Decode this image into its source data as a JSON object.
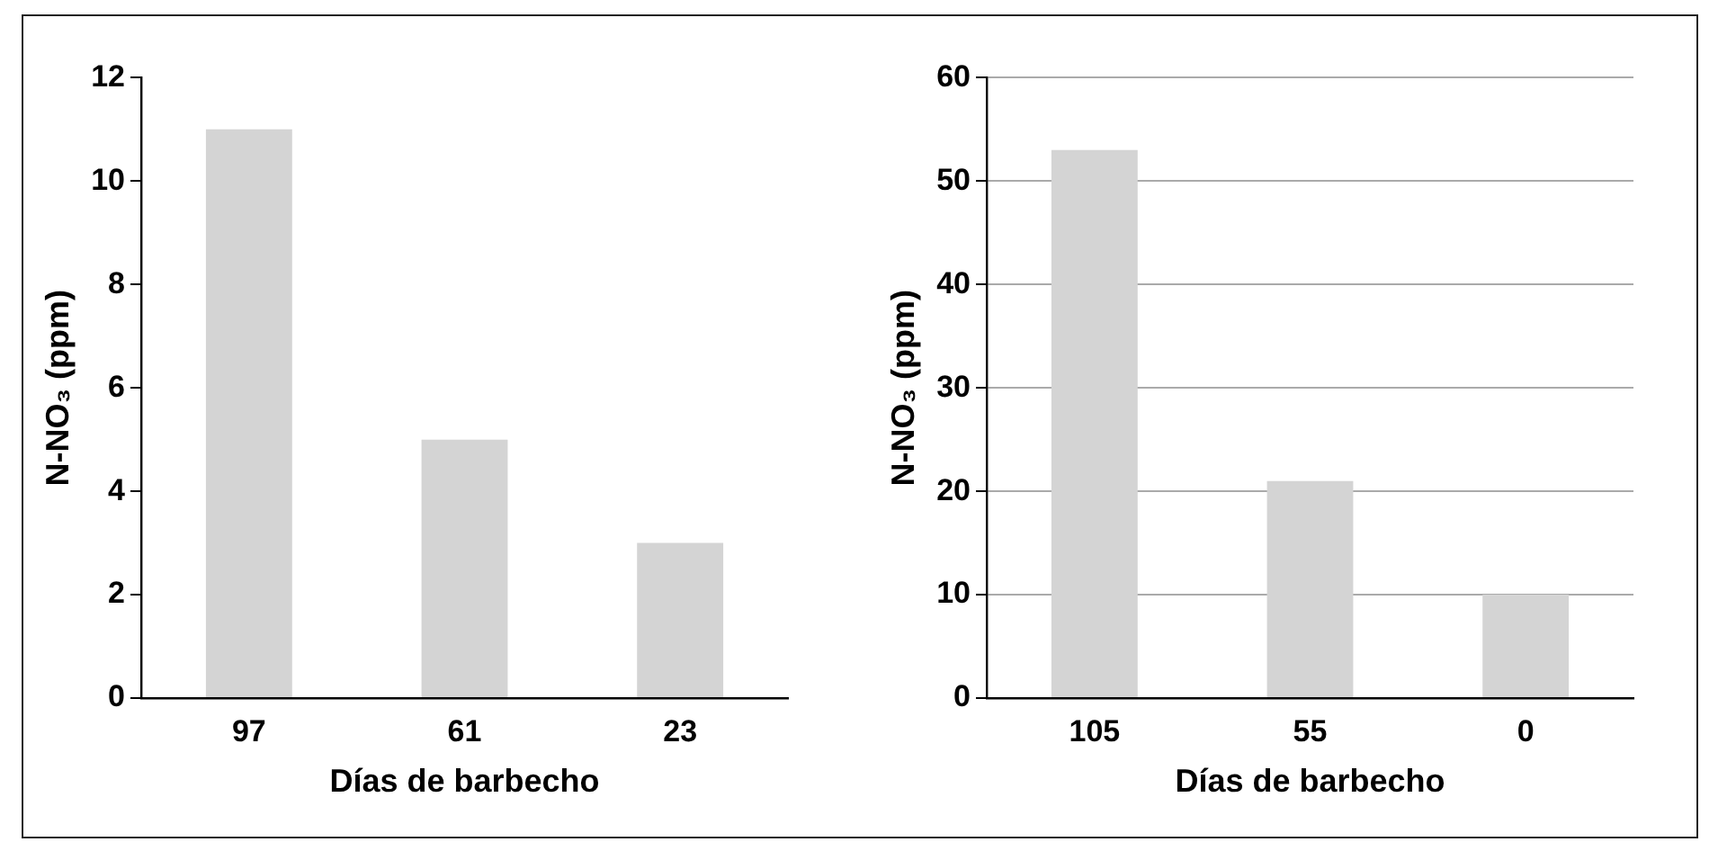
{
  "chart_data": [
    {
      "type": "bar",
      "xlabel": "Días de barbecho",
      "ylabel": "N-NO₃ (ppm)",
      "categories": [
        "97",
        "61",
        "23"
      ],
      "values": [
        11,
        5,
        3
      ],
      "color": "#d4d4d4",
      "ylim": [
        0,
        12
      ],
      "yticks": [
        0,
        2,
        4,
        6,
        8,
        10,
        12
      ],
      "grid": false,
      "legend": false
    },
    {
      "type": "bar",
      "xlabel": "Días de barbecho",
      "ylabel": "N-NO₃ (ppm)",
      "categories": [
        "105",
        "55",
        "0"
      ],
      "values": [
        53,
        21,
        10
      ],
      "color": "#d4d4d4",
      "ylim": [
        0,
        60
      ],
      "yticks": [
        0,
        10,
        20,
        30,
        40,
        50,
        60
      ],
      "grid": "y",
      "legend": false
    }
  ]
}
